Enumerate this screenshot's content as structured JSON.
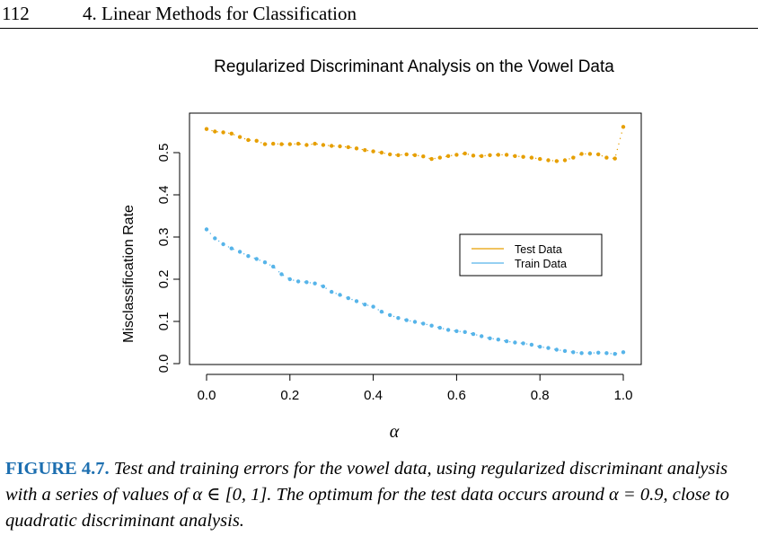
{
  "header": {
    "page_number": "112",
    "chapter_title": "4. Linear Methods for Classification"
  },
  "caption": {
    "label": "FIGURE 4.7.",
    "text": "Test and training errors for the vowel data, using regularized discriminant analysis with a series of values of α ∈ [0, 1]. The optimum for the test data occurs around α = 0.9, close to quadratic discriminant analysis."
  },
  "chart_data": {
    "type": "scatter",
    "title": "Regularized Discriminant Analysis on the Vowel Data",
    "xlabel": "α",
    "ylabel": "Misclassification Rate",
    "xlim": [
      0,
      1
    ],
    "ylim": [
      0,
      0.6
    ],
    "x_ticks": [
      "0.0",
      "0.2",
      "0.4",
      "0.6",
      "0.8",
      "1.0"
    ],
    "y_ticks": [
      "0.0",
      "0.1",
      "0.2",
      "0.3",
      "0.4",
      "0.5"
    ],
    "legend_placement": "right-center",
    "grid": false,
    "x": [
      0.0,
      0.02,
      0.04,
      0.06,
      0.08,
      0.1,
      0.12,
      0.14,
      0.16,
      0.18,
      0.2,
      0.22,
      0.24,
      0.26,
      0.28,
      0.3,
      0.32,
      0.34,
      0.36,
      0.38,
      0.4,
      0.42,
      0.44,
      0.46,
      0.48,
      0.5,
      0.52,
      0.54,
      0.56,
      0.58,
      0.6,
      0.62,
      0.64,
      0.66,
      0.68,
      0.7,
      0.72,
      0.74,
      0.76,
      0.78,
      0.8,
      0.82,
      0.84,
      0.86,
      0.88,
      0.9,
      0.92,
      0.94,
      0.96,
      0.98,
      1.0
    ],
    "series": [
      {
        "name": "Test Data",
        "color": "#e69f00",
        "values": [
          0.556,
          0.55,
          0.548,
          0.545,
          0.537,
          0.53,
          0.528,
          0.52,
          0.521,
          0.52,
          0.52,
          0.521,
          0.518,
          0.521,
          0.518,
          0.516,
          0.515,
          0.513,
          0.51,
          0.506,
          0.503,
          0.5,
          0.496,
          0.494,
          0.496,
          0.494,
          0.491,
          0.485,
          0.488,
          0.492,
          0.495,
          0.498,
          0.493,
          0.492,
          0.494,
          0.495,
          0.495,
          0.492,
          0.49,
          0.488,
          0.485,
          0.482,
          0.48,
          0.482,
          0.488,
          0.497,
          0.497,
          0.496,
          0.488,
          0.486,
          0.561
        ]
      },
      {
        "name": "Train Data",
        "color": "#56b4e9",
        "values": [
          0.318,
          0.297,
          0.283,
          0.273,
          0.265,
          0.255,
          0.248,
          0.24,
          0.23,
          0.212,
          0.2,
          0.195,
          0.193,
          0.19,
          0.183,
          0.17,
          0.163,
          0.155,
          0.148,
          0.14,
          0.135,
          0.123,
          0.115,
          0.108,
          0.103,
          0.099,
          0.095,
          0.09,
          0.085,
          0.08,
          0.077,
          0.075,
          0.07,
          0.065,
          0.06,
          0.057,
          0.053,
          0.05,
          0.048,
          0.045,
          0.04,
          0.037,
          0.033,
          0.03,
          0.027,
          0.025,
          0.025,
          0.026,
          0.025,
          0.023,
          0.027
        ]
      }
    ]
  }
}
